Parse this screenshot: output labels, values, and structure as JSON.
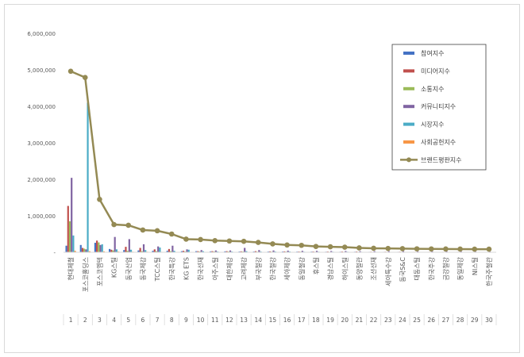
{
  "chart_data": {
    "type": "bar",
    "title": "",
    "xlabel": "",
    "ylabel": "",
    "ylim": [
      0,
      6000000
    ],
    "y_ticks": [
      "6,000,000",
      "5,000,000",
      "4,000,000",
      "3,000,000",
      "2,000,000",
      "1,000,000",
      "-"
    ],
    "grid": false,
    "legend_position": "top-right",
    "categories": [
      "현대제철",
      "포스코홀딩스",
      "포스코엠텍",
      "KG스틸",
      "동국산업",
      "동국제강",
      "TCC스틸",
      "한국특강",
      "KG ETS",
      "한국선재",
      "아주스틸",
      "대한제강",
      "고려제강",
      "부국철강",
      "한국철강",
      "세아제강",
      "동일철강",
      "휴스틸",
      "경남스틸",
      "하이스틸",
      "동양철관",
      "조선선재",
      "세아특수강",
      "동국S&C",
      "대동스틸",
      "한국주강",
      "금강철강",
      "동일제강",
      "NI스틸",
      "한국주철관"
    ],
    "index_labels": [
      "1",
      "2",
      "3",
      "4",
      "5",
      "6",
      "7",
      "8",
      "9",
      "10",
      "11",
      "12",
      "13",
      "14",
      "15",
      "16",
      "17",
      "18",
      "19",
      "20",
      "21",
      "22",
      "23",
      "24",
      "25",
      "26",
      "27",
      "28",
      "29",
      "30"
    ],
    "series": [
      {
        "name": "참여지수",
        "type": "bar",
        "color": "#4472c4",
        "values": [
          180000,
          200000,
          260000,
          90000,
          60000,
          50000,
          40000,
          40000,
          30000,
          30000,
          25000,
          25000,
          20000,
          20000,
          20000,
          20000,
          18000,
          18000,
          15000,
          15000,
          15000,
          12000,
          12000,
          12000,
          10000,
          10000,
          10000,
          10000,
          10000,
          10000
        ]
      },
      {
        "name": "미디어지수",
        "type": "bar",
        "color": "#c0504d",
        "values": [
          1270000,
          120000,
          320000,
          70000,
          150000,
          120000,
          80000,
          90000,
          40000,
          30000,
          30000,
          30000,
          25000,
          30000,
          25000,
          25000,
          20000,
          20000,
          20000,
          20000,
          20000,
          15000,
          15000,
          15000,
          12000,
          12000,
          12000,
          12000,
          10000,
          10000
        ]
      },
      {
        "name": "소통지수",
        "type": "bar",
        "color": "#9bbb59",
        "values": [
          850000,
          100000,
          270000,
          50000,
          40000,
          30000,
          30000,
          30000,
          20000,
          20000,
          20000,
          20000,
          20000,
          15000,
          15000,
          15000,
          15000,
          12000,
          12000,
          12000,
          12000,
          10000,
          10000,
          10000,
          10000,
          8000,
          8000,
          8000,
          8000,
          8000
        ]
      },
      {
        "name": "커뮤니티지수",
        "type": "bar",
        "color": "#8064a2",
        "values": [
          2040000,
          80000,
          200000,
          420000,
          360000,
          220000,
          160000,
          180000,
          80000,
          60000,
          50000,
          50000,
          120000,
          60000,
          50000,
          45000,
          40000,
          40000,
          35000,
          35000,
          30000,
          30000,
          30000,
          30000,
          25000,
          25000,
          25000,
          25000,
          20000,
          20000
        ]
      },
      {
        "name": "시장지수",
        "type": "bar",
        "color": "#4bacc6",
        "values": [
          460000,
          4100000,
          220000,
          80000,
          70000,
          60000,
          130000,
          40000,
          70000,
          30000,
          20000,
          20000,
          30000,
          20000,
          20000,
          20000,
          15000,
          15000,
          15000,
          15000,
          12000,
          12000,
          10000,
          10000,
          10000,
          10000,
          10000,
          8000,
          8000,
          8000
        ]
      },
      {
        "name": "사회공헌지수",
        "type": "bar",
        "color": "#f79646",
        "values": [
          40000,
          30000,
          25000,
          20000,
          15000,
          15000,
          12000,
          12000,
          10000,
          10000,
          10000,
          8000,
          8000,
          8000,
          8000,
          8000,
          6000,
          6000,
          6000,
          6000,
          6000,
          5000,
          5000,
          5000,
          5000,
          5000,
          5000,
          5000,
          5000,
          5000
        ]
      },
      {
        "name": "브랜드평판지수",
        "type": "line",
        "color": "#948a54",
        "values": [
          4960000,
          4790000,
          1450000,
          760000,
          740000,
          610000,
          590000,
          500000,
          360000,
          350000,
          320000,
          310000,
          300000,
          270000,
          230000,
          200000,
          190000,
          160000,
          150000,
          140000,
          120000,
          110000,
          105000,
          100000,
          95000,
          92000,
          90000,
          88000,
          85000,
          85000
        ]
      }
    ]
  }
}
